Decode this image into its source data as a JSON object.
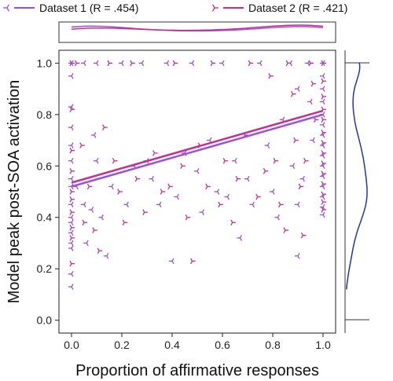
{
  "chart_data": {
    "type": "scatter",
    "xlabel": "Proportion of affirmative responses",
    "ylabel": "Model peak post-SOA activation",
    "xlim": [
      -0.05,
      1.05
    ],
    "ylim": [
      -0.05,
      1.05
    ],
    "x_ticks": [
      "0.0",
      "0.2",
      "0.4",
      "0.6",
      "0.8",
      "1.0"
    ],
    "y_ticks": [
      "0.0",
      "0.2",
      "0.4",
      "0.6",
      "0.8",
      "1.0"
    ],
    "legend_position": "top",
    "marginal_top": "density curves per dataset",
    "marginal_right": "density curve",
    "series": [
      {
        "name": "Dataset 1 (R = .454)",
        "color": "#9b4fe0",
        "marker": "tri-left",
        "fit": {
          "intercept": 0.52,
          "slope": 0.28
        },
        "points": [
          [
            0,
            1.0
          ],
          [
            0,
            0.95
          ],
          [
            0,
            0.83
          ],
          [
            0,
            0.75
          ],
          [
            0,
            0.68
          ],
          [
            0,
            0.62
          ],
          [
            0,
            0.55
          ],
          [
            0,
            0.52
          ],
          [
            0,
            0.45
          ],
          [
            0,
            0.4
          ],
          [
            0,
            0.38
          ],
          [
            0,
            0.34
          ],
          [
            0,
            0.3
          ],
          [
            0,
            0.28
          ],
          [
            0,
            0.18
          ],
          [
            0,
            0.13
          ],
          [
            0.02,
            0.52
          ],
          [
            0.05,
            1.0
          ],
          [
            0.05,
            0.45
          ],
          [
            0.06,
            0.3
          ],
          [
            0.08,
            0.43
          ],
          [
            0.09,
            0.72
          ],
          [
            0.1,
            1.0
          ],
          [
            0.1,
            0.62
          ],
          [
            0.12,
            0.4
          ],
          [
            0.14,
            0.25
          ],
          [
            0.16,
            0.52
          ],
          [
            0.2,
            1.0
          ],
          [
            0.22,
            0.45
          ],
          [
            0.25,
            0.6
          ],
          [
            0.28,
            1.0
          ],
          [
            0.3,
            0.62
          ],
          [
            0.32,
            0.55
          ],
          [
            0.35,
            0.45
          ],
          [
            0.38,
            1.0
          ],
          [
            0.4,
            0.23
          ],
          [
            0.42,
            0.48
          ],
          [
            0.45,
            0.65
          ],
          [
            0.48,
            1.0
          ],
          [
            0.5,
            0.58
          ],
          [
            0.52,
            0.42
          ],
          [
            0.55,
            0.7
          ],
          [
            0.58,
            0.5
          ],
          [
            0.6,
            1.0
          ],
          [
            0.62,
            0.48
          ],
          [
            0.65,
            0.62
          ],
          [
            0.67,
            0.32
          ],
          [
            0.7,
            0.55
          ],
          [
            0.72,
            0.45
          ],
          [
            0.75,
            1.0
          ],
          [
            0.78,
            0.68
          ],
          [
            0.8,
            0.5
          ],
          [
            0.82,
            0.4
          ],
          [
            0.84,
            0.78
          ],
          [
            0.87,
            1.0
          ],
          [
            0.88,
            0.6
          ],
          [
            0.9,
            0.9
          ],
          [
            0.9,
            0.45
          ],
          [
            0.9,
            0.25
          ],
          [
            0.92,
            0.55
          ],
          [
            0.94,
            1.0
          ],
          [
            0.95,
            0.85
          ],
          [
            0.96,
            0.7
          ],
          [
            1,
            1.0
          ],
          [
            1,
            0.95
          ],
          [
            1,
            0.9
          ],
          [
            1,
            0.85
          ],
          [
            1,
            0.8
          ],
          [
            1,
            0.76
          ],
          [
            1,
            0.72
          ],
          [
            1,
            0.68
          ],
          [
            1,
            0.64
          ],
          [
            1,
            0.6
          ],
          [
            1,
            0.56
          ],
          [
            1,
            0.52
          ],
          [
            1,
            0.48
          ],
          [
            1,
            0.44
          ],
          [
            1,
            0.41
          ]
        ]
      },
      {
        "name": "Dataset 2 (R = .421)",
        "color": "#cc2b8e",
        "marker": "tri-right",
        "fit": {
          "intercept": 0.535,
          "slope": 0.28
        },
        "points": [
          [
            0,
            1.0
          ],
          [
            0,
            0.82
          ],
          [
            0,
            0.66
          ],
          [
            0,
            0.58
          ],
          [
            0,
            0.5
          ],
          [
            0,
            0.47
          ],
          [
            0,
            0.42
          ],
          [
            0,
            0.36
          ],
          [
            0,
            0.32
          ],
          [
            0,
            0.22
          ],
          [
            0.02,
            1.0
          ],
          [
            0.04,
            0.68
          ],
          [
            0.05,
            0.38
          ],
          [
            0.07,
            0.52
          ],
          [
            0.09,
            0.35
          ],
          [
            0.11,
            0.27
          ],
          [
            0.13,
            0.75
          ],
          [
            0.15,
            1.0
          ],
          [
            0.17,
            0.62
          ],
          [
            0.19,
            0.5
          ],
          [
            0.21,
            0.38
          ],
          [
            0.24,
            1.0
          ],
          [
            0.26,
            0.55
          ],
          [
            0.29,
            0.42
          ],
          [
            0.33,
            0.65
          ],
          [
            0.36,
            0.5
          ],
          [
            0.39,
            0.52
          ],
          [
            0.41,
            1.0
          ],
          [
            0.44,
            0.6
          ],
          [
            0.46,
            0.4
          ],
          [
            0.48,
            0.23
          ],
          [
            0.51,
            0.68
          ],
          [
            0.54,
            0.52
          ],
          [
            0.56,
            1.0
          ],
          [
            0.59,
            0.45
          ],
          [
            0.61,
            0.62
          ],
          [
            0.64,
            0.38
          ],
          [
            0.66,
            0.55
          ],
          [
            0.69,
            0.72
          ],
          [
            0.71,
            1.0
          ],
          [
            0.74,
            0.48
          ],
          [
            0.77,
            0.58
          ],
          [
            0.79,
            0.95
          ],
          [
            0.81,
            0.62
          ],
          [
            0.83,
            0.45
          ],
          [
            0.85,
            0.35
          ],
          [
            0.86,
            1.0
          ],
          [
            0.88,
            0.88
          ],
          [
            0.89,
            0.7
          ],
          [
            0.91,
            0.52
          ],
          [
            0.92,
            0.33
          ],
          [
            0.93,
            0.62
          ],
          [
            0.95,
            1.0
          ],
          [
            0.96,
            0.92
          ],
          [
            0.97,
            0.78
          ],
          [
            1,
            1.0
          ],
          [
            1,
            0.93
          ],
          [
            1,
            0.87
          ],
          [
            1,
            0.82
          ],
          [
            1,
            0.78
          ],
          [
            1,
            0.73
          ],
          [
            1,
            0.69
          ],
          [
            1,
            0.65
          ],
          [
            1,
            0.61
          ],
          [
            1,
            0.57
          ],
          [
            1,
            0.53
          ],
          [
            1,
            0.49
          ],
          [
            1,
            0.46
          ],
          [
            1,
            0.43
          ]
        ]
      }
    ]
  },
  "colors": {
    "marginal_right": "#2233bb",
    "axis": "#222222"
  }
}
